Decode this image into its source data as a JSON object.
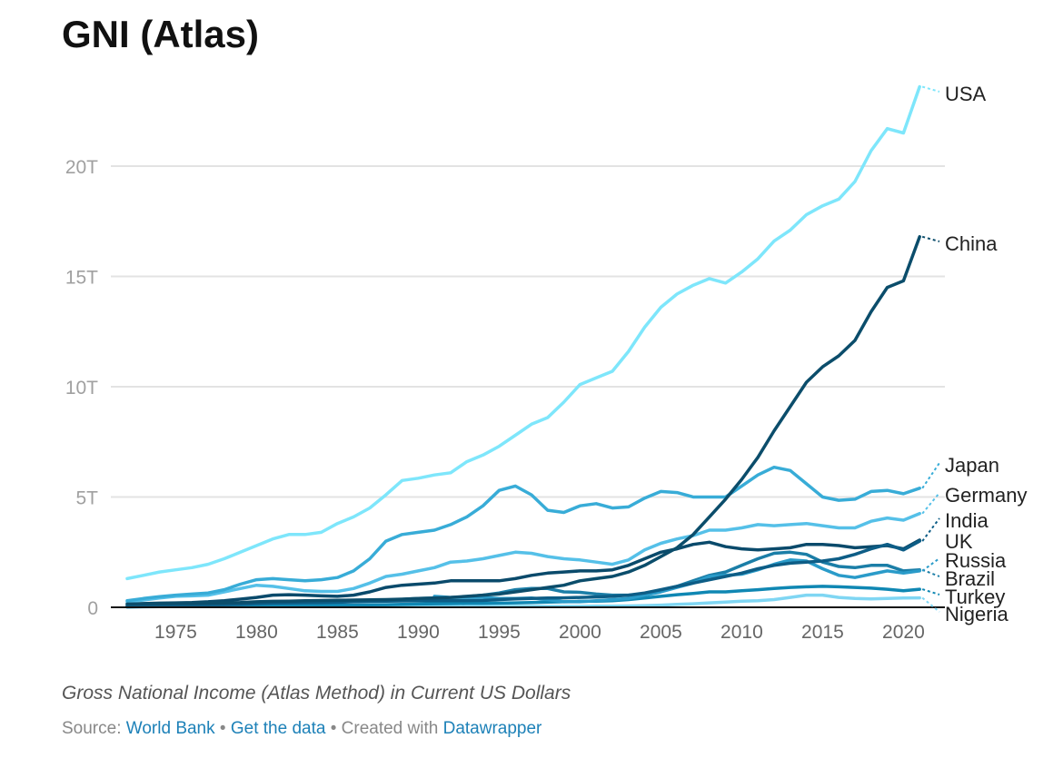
{
  "chart_data": {
    "type": "line",
    "title": "GNI (Atlas)",
    "subtitle": "Gross National Income (Atlas Method) in Current US Dollars",
    "xlabel": "",
    "ylabel": "",
    "ylim": [
      0,
      24
    ],
    "xlim": [
      1972,
      2021
    ],
    "y_ticks": [
      {
        "v": 0,
        "label": "0"
      },
      {
        "v": 5,
        "label": "5T"
      },
      {
        "v": 10,
        "label": "10T"
      },
      {
        "v": 15,
        "label": "15T"
      },
      {
        "v": 20,
        "label": "20T"
      }
    ],
    "x_ticks": [
      {
        "v": 1975,
        "label": "1975"
      },
      {
        "v": 1980,
        "label": "1980"
      },
      {
        "v": 1985,
        "label": "1985"
      },
      {
        "v": 1990,
        "label": "1990"
      },
      {
        "v": 1995,
        "label": "1995"
      },
      {
        "v": 2000,
        "label": "2000"
      },
      {
        "v": 2005,
        "label": "2005"
      },
      {
        "v": 2010,
        "label": "2010"
      },
      {
        "v": 2015,
        "label": "2015"
      },
      {
        "v": 2020,
        "label": "2020"
      }
    ],
    "grid": true,
    "legend": "direct labels at line ends (right)",
    "units": "trillion USD",
    "series": [
      {
        "name": "Nigeria",
        "color": "#7fd6f3",
        "start": 1972,
        "values": [
          0.01,
          0.02,
          0.03,
          0.04,
          0.05,
          0.06,
          0.07,
          0.08,
          0.08,
          0.08,
          0.07,
          0.06,
          0.05,
          0.05,
          0.04,
          0.04,
          0.04,
          0.04,
          0.04,
          0.04,
          0.04,
          0.04,
          0.04,
          0.04,
          0.04,
          0.04,
          0.04,
          0.04,
          0.04,
          0.05,
          0.05,
          0.06,
          0.08,
          0.1,
          0.13,
          0.16,
          0.2,
          0.24,
          0.28,
          0.3,
          0.35,
          0.45,
          0.55,
          0.55,
          0.45,
          0.4,
          0.38,
          0.4,
          0.42,
          0.43
        ]
      },
      {
        "name": "Turkey",
        "color": "#0f87b3",
        "start": 1972,
        "values": [
          0.02,
          0.03,
          0.04,
          0.05,
          0.06,
          0.07,
          0.08,
          0.09,
          0.1,
          0.1,
          0.1,
          0.1,
          0.1,
          0.1,
          0.1,
          0.11,
          0.12,
          0.13,
          0.15,
          0.16,
          0.17,
          0.18,
          0.18,
          0.19,
          0.2,
          0.22,
          0.24,
          0.25,
          0.27,
          0.28,
          0.3,
          0.35,
          0.42,
          0.5,
          0.57,
          0.63,
          0.7,
          0.7,
          0.75,
          0.8,
          0.85,
          0.9,
          0.93,
          0.95,
          0.93,
          0.9,
          0.87,
          0.82,
          0.75,
          0.82
        ]
      },
      {
        "name": "Brazil",
        "color": "#1b7ea7",
        "start": 1972,
        "values": [
          0.05,
          0.07,
          0.09,
          0.11,
          0.13,
          0.15,
          0.17,
          0.19,
          0.2,
          0.22,
          0.24,
          0.24,
          0.24,
          0.25,
          0.27,
          0.3,
          0.32,
          0.36,
          0.4,
          0.42,
          0.44,
          0.48,
          0.55,
          0.65,
          0.8,
          0.85,
          0.85,
          0.7,
          0.68,
          0.6,
          0.55,
          0.55,
          0.6,
          0.75,
          0.95,
          1.2,
          1.45,
          1.6,
          1.9,
          2.2,
          2.45,
          2.5,
          2.4,
          2.05,
          1.85,
          1.8,
          1.9,
          1.9,
          1.65,
          1.7
        ]
      },
      {
        "name": "Russia",
        "color": "#2a9bc9",
        "start": 1991,
        "values": [
          0.5,
          0.45,
          0.45,
          0.45,
          0.4,
          0.4,
          0.42,
          0.35,
          0.25,
          0.25,
          0.3,
          0.35,
          0.4,
          0.55,
          0.7,
          0.9,
          1.1,
          1.4,
          1.45,
          1.5,
          1.7,
          1.95,
          2.15,
          2.1,
          1.75,
          1.45,
          1.35,
          1.5,
          1.65,
          1.55,
          1.65
        ]
      },
      {
        "name": "UK",
        "color": "#0a4a6b",
        "start": 1972,
        "values": [
          0.15,
          0.17,
          0.19,
          0.2,
          0.22,
          0.25,
          0.3,
          0.37,
          0.45,
          0.55,
          0.57,
          0.55,
          0.52,
          0.5,
          0.55,
          0.7,
          0.9,
          1.0,
          1.05,
          1.1,
          1.2,
          1.2,
          1.2,
          1.2,
          1.3,
          1.45,
          1.55,
          1.6,
          1.65,
          1.65,
          1.7,
          1.9,
          2.2,
          2.5,
          2.65,
          2.85,
          2.95,
          2.75,
          2.65,
          2.6,
          2.65,
          2.7,
          2.85,
          2.85,
          2.8,
          2.7,
          2.75,
          2.8,
          2.65,
          3.05
        ]
      },
      {
        "name": "India",
        "color": "#0d5d86",
        "start": 1972,
        "values": [
          0.07,
          0.08,
          0.09,
          0.1,
          0.1,
          0.11,
          0.12,
          0.14,
          0.17,
          0.19,
          0.2,
          0.21,
          0.22,
          0.23,
          0.25,
          0.27,
          0.28,
          0.29,
          0.3,
          0.3,
          0.3,
          0.3,
          0.31,
          0.35,
          0.38,
          0.4,
          0.42,
          0.43,
          0.45,
          0.47,
          0.5,
          0.55,
          0.65,
          0.8,
          0.95,
          1.1,
          1.25,
          1.4,
          1.55,
          1.75,
          1.9,
          2.0,
          2.05,
          2.1,
          2.2,
          2.4,
          2.65,
          2.85,
          2.6,
          3.0
        ]
      },
      {
        "name": "Germany",
        "color": "#55c0e8",
        "start": 1972,
        "values": [
          0.25,
          0.33,
          0.42,
          0.5,
          0.52,
          0.55,
          0.7,
          0.85,
          1.0,
          0.95,
          0.85,
          0.75,
          0.72,
          0.72,
          0.85,
          1.1,
          1.4,
          1.5,
          1.65,
          1.8,
          2.05,
          2.1,
          2.2,
          2.35,
          2.5,
          2.45,
          2.3,
          2.2,
          2.15,
          2.05,
          1.95,
          2.15,
          2.6,
          2.9,
          3.1,
          3.25,
          3.5,
          3.5,
          3.6,
          3.75,
          3.7,
          3.75,
          3.8,
          3.7,
          3.6,
          3.6,
          3.9,
          4.05,
          3.95,
          4.25
        ]
      },
      {
        "name": "Japan",
        "color": "#38acd7",
        "start": 1972,
        "values": [
          0.3,
          0.4,
          0.48,
          0.55,
          0.6,
          0.65,
          0.8,
          1.05,
          1.25,
          1.3,
          1.25,
          1.2,
          1.25,
          1.35,
          1.65,
          2.2,
          3.0,
          3.3,
          3.4,
          3.5,
          3.75,
          4.1,
          4.6,
          5.3,
          5.5,
          5.1,
          4.4,
          4.3,
          4.6,
          4.7,
          4.5,
          4.55,
          4.95,
          5.25,
          5.2,
          5.0,
          5.0,
          5.0,
          5.5,
          6.0,
          6.35,
          6.2,
          5.6,
          5.0,
          4.85,
          4.9,
          5.25,
          5.3,
          5.15,
          5.4
        ]
      },
      {
        "name": "China",
        "color": "#0b4d6b",
        "start": 1972,
        "values": [
          0.15,
          0.16,
          0.17,
          0.18,
          0.18,
          0.19,
          0.2,
          0.22,
          0.25,
          0.27,
          0.28,
          0.3,
          0.31,
          0.32,
          0.33,
          0.34,
          0.35,
          0.37,
          0.4,
          0.42,
          0.45,
          0.5,
          0.55,
          0.6,
          0.7,
          0.8,
          0.9,
          1.0,
          1.2,
          1.3,
          1.4,
          1.6,
          1.9,
          2.3,
          2.7,
          3.3,
          4.1,
          4.9,
          5.8,
          6.8,
          8.0,
          9.1,
          10.2,
          10.9,
          11.4,
          12.1,
          13.4,
          14.5,
          14.8,
          16.8
        ]
      },
      {
        "name": "USA",
        "color": "#7ee6fb",
        "start": 1972,
        "values": [
          1.3,
          1.45,
          1.6,
          1.7,
          1.8,
          1.95,
          2.2,
          2.5,
          2.8,
          3.1,
          3.3,
          3.3,
          3.4,
          3.8,
          4.1,
          4.5,
          5.1,
          5.75,
          5.85,
          6.0,
          6.1,
          6.6,
          6.9,
          7.3,
          7.8,
          8.3,
          8.6,
          9.3,
          10.1,
          10.4,
          10.7,
          11.6,
          12.7,
          13.6,
          14.2,
          14.6,
          14.9,
          14.7,
          15.2,
          15.8,
          16.6,
          17.1,
          17.8,
          18.2,
          18.5,
          19.3,
          20.7,
          21.7,
          21.5,
          23.6
        ]
      }
    ]
  },
  "footer": {
    "source_prefix": "Source:",
    "source_link": "World Bank",
    "get_data": "Get the data",
    "created_with": "Created with",
    "tool_link": "Datawrapper",
    "bullet": "•"
  }
}
